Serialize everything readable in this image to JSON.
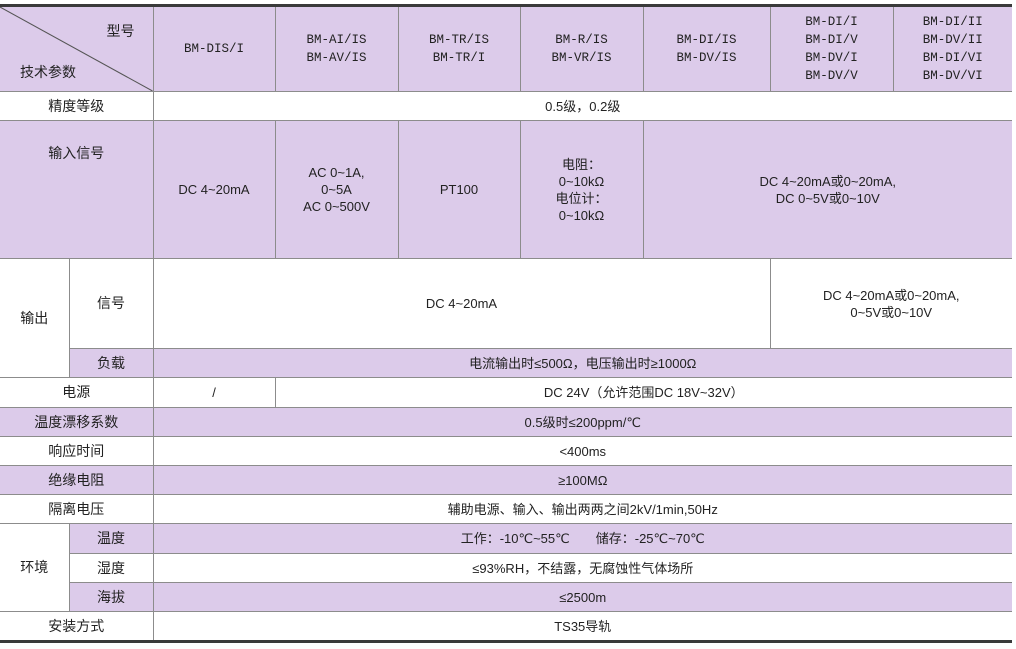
{
  "header": {
    "corner_top": "型号",
    "corner_bottom": "技术参数",
    "models": [
      [
        "BM-DIS/I"
      ],
      [
        "BM-AI/IS",
        "BM-AV/IS"
      ],
      [
        "BM-TR/IS",
        "BM-TR/I"
      ],
      [
        "BM-R/IS",
        "BM-VR/IS"
      ],
      [
        "BM-DI/IS",
        "BM-DV/IS"
      ],
      [
        "BM-DI/I",
        "BM-DI/V",
        "BM-DV/I",
        "BM-DV/V"
      ],
      [
        "BM-DI/II",
        "BM-DV/II",
        "BM-DI/VI",
        "BM-DV/VI"
      ]
    ]
  },
  "rows": {
    "accuracy": {
      "label": "精度等级",
      "value": "0.5级，0.2级"
    },
    "input": {
      "label": "输入信号",
      "values": [
        [
          "DC 4~20mA"
        ],
        [
          "AC 0~1A,",
          "0~5A",
          "AC 0~500V"
        ],
        [
          "PT100"
        ],
        [
          "电阻：",
          "0~10kΩ",
          "电位计：",
          "0~10kΩ"
        ],
        [
          "DC 4~20mA或0~20mA,",
          "DC 0~5V或0~10V"
        ]
      ]
    },
    "output": {
      "label": "输出",
      "signal": {
        "label": "信号",
        "value": "DC 4~20mA",
        "value2": [
          "DC 4~20mA或0~20mA,",
          "0~5V或0~10V"
        ]
      },
      "load": {
        "label": "负载",
        "value": "电流输出时≤500Ω，电压输出时≥1000Ω"
      }
    },
    "power": {
      "label": "电源",
      "value1": "/",
      "value2": "DC 24V（允许范围DC 18V~32V）"
    },
    "temp_drift": {
      "label": "温度漂移系数",
      "value": "0.5级时≤200ppm/℃"
    },
    "response": {
      "label": "响应时间",
      "value": "<400ms"
    },
    "insulation": {
      "label": "绝缘电阻",
      "value": "≥100MΩ"
    },
    "isolation": {
      "label": "隔离电压",
      "value": "辅助电源、输入、输出两两之间2kV/1min,50Hz"
    },
    "environment": {
      "label": "环境",
      "temperature": {
        "label": "温度",
        "value": "工作：-10℃~55℃　　储存：-25℃~70℃"
      },
      "humidity": {
        "label": "湿度",
        "value": "≤93%RH，不结露，无腐蚀性气体场所"
      },
      "altitude": {
        "label": "海拔",
        "value": "≤2500m"
      }
    },
    "mounting": {
      "label": "安装方式",
      "value": "TS35导轨"
    }
  },
  "colors": {
    "accent": "#dccbea",
    "border": "#8c8c8c",
    "rule": "#3a3a3a"
  }
}
